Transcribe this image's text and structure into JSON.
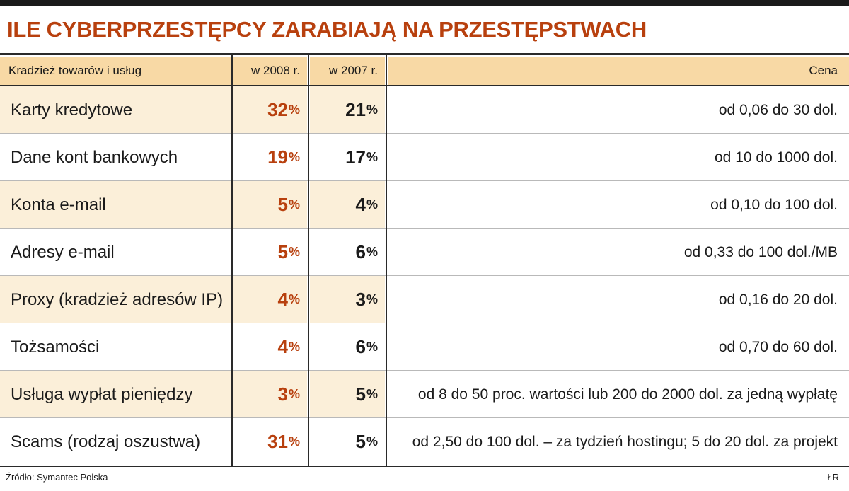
{
  "title": "ILE CYBERPRZESTĘPCY ZARABIAJĄ NA PRZESTĘPSTWACH",
  "header": {
    "category": "Kradzież towarów i usług",
    "y2008": "w 2008 r.",
    "y2007": "w 2007 r.",
    "price": "Cena"
  },
  "percent_sign": "%",
  "rows": [
    {
      "name": "Karty kredytowe",
      "y2008": "32",
      "y2007": "21",
      "price": "od 0,06 do 30 dol."
    },
    {
      "name": "Dane kont bankowych",
      "y2008": "19",
      "y2007": "17",
      "price": "od 10 do 1000 dol."
    },
    {
      "name": "Konta e-mail",
      "y2008": "5",
      "y2007": "4",
      "price": "od 0,10 do 100 dol."
    },
    {
      "name": "Adresy e-mail",
      "y2008": "5",
      "y2007": "6",
      "price": "od 0,33 do 100 dol./MB"
    },
    {
      "name": "Proxy (kradzież adresów IP)",
      "y2008": "4",
      "y2007": "3",
      "price": "od 0,16 do 20 dol."
    },
    {
      "name": "Tożsamości",
      "y2008": "4",
      "y2007": "6",
      "price": "od 0,70 do 60 dol."
    },
    {
      "name": "Usługa wypłat pieniędzy",
      "y2008": "3",
      "y2007": "5",
      "price": "od 8 do 50 proc. wartości lub 200 do 2000 dol. za jedną wypłatę"
    },
    {
      "name": "Scams (rodzaj oszustwa)",
      "y2008": "31",
      "y2007": "5",
      "price": "od 2,50 do 100 dol. – za tydzień hostingu; 5 do 20 dol. za projekt"
    }
  ],
  "footer": {
    "source": "Źródło: Symantec Polska",
    "credit": "ŁR"
  },
  "colors": {
    "accent": "#b8400e",
    "header_fill": "#f8d9a5",
    "row_fill": "#fbefd9"
  }
}
